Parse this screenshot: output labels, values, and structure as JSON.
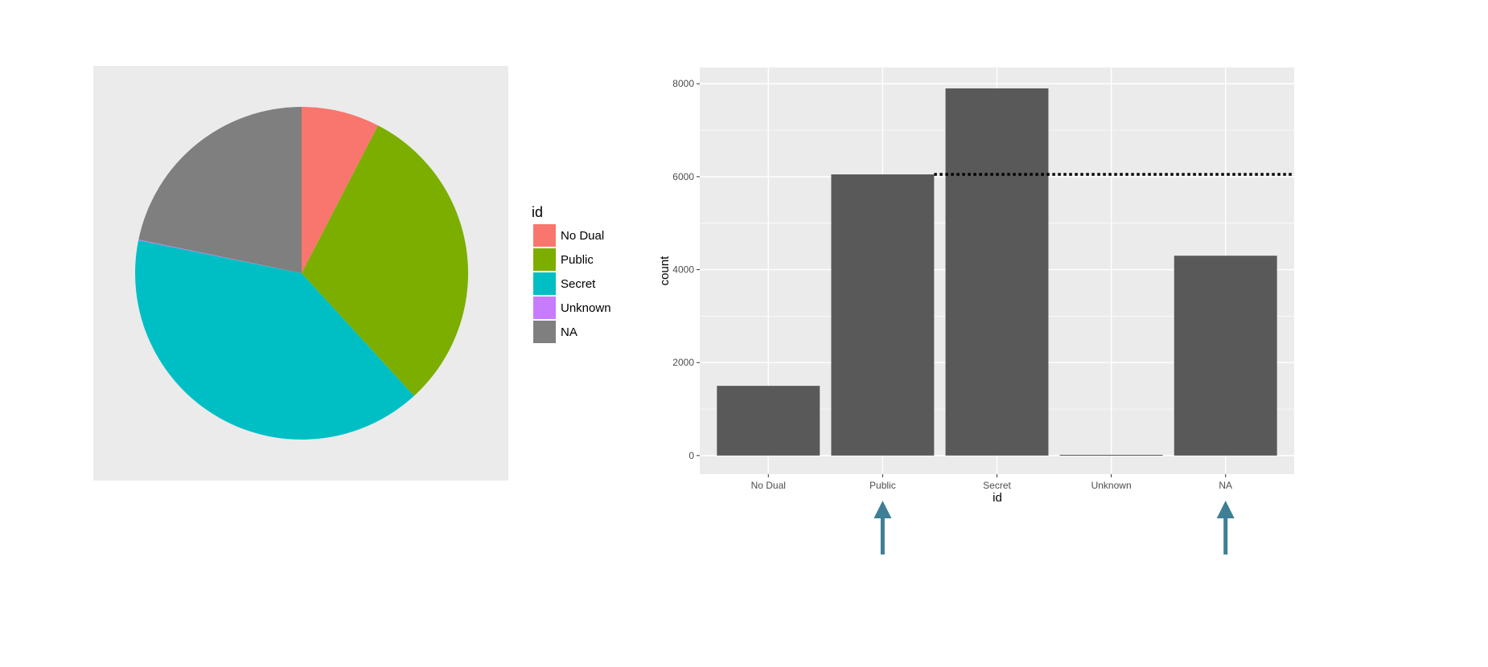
{
  "chart_data": [
    {
      "type": "pie",
      "legend": {
        "title": "id",
        "position": "right",
        "entries": [
          "No Dual",
          "Public",
          "Secret",
          "Unknown",
          "NA"
        ]
      },
      "categories": [
        "No Dual",
        "Public",
        "Secret",
        "Unknown",
        "NA"
      ],
      "values": [
        1500,
        6050,
        7900,
        15,
        4300
      ],
      "colors": [
        "#F8766D",
        "#7CAE00",
        "#00BFC4",
        "#C77CFF",
        "#7F7F7F"
      ],
      "panel_background": "#EBEBEB"
    },
    {
      "type": "bar",
      "xlabel": "id",
      "ylabel": "count",
      "categories": [
        "No Dual",
        "Public",
        "Secret",
        "Unknown",
        "NA"
      ],
      "values": [
        1500,
        6050,
        7900,
        15,
        4300
      ],
      "ylim": [
        -400,
        8350
      ],
      "yticks": [
        0,
        2000,
        4000,
        6000,
        8000
      ],
      "ytick_labels": [
        "0",
        "2000",
        "4000",
        "6000",
        "8000"
      ],
      "grid": true,
      "bar_color": "#595959",
      "panel_background": "#EBEBEB",
      "reference_line": {
        "y": 6050,
        "style": "dotted",
        "from_category": "Public",
        "color": "#000000"
      },
      "arrows_under_categories": [
        "Public",
        "NA"
      ],
      "arrow_color": "#3E7F96"
    }
  ]
}
